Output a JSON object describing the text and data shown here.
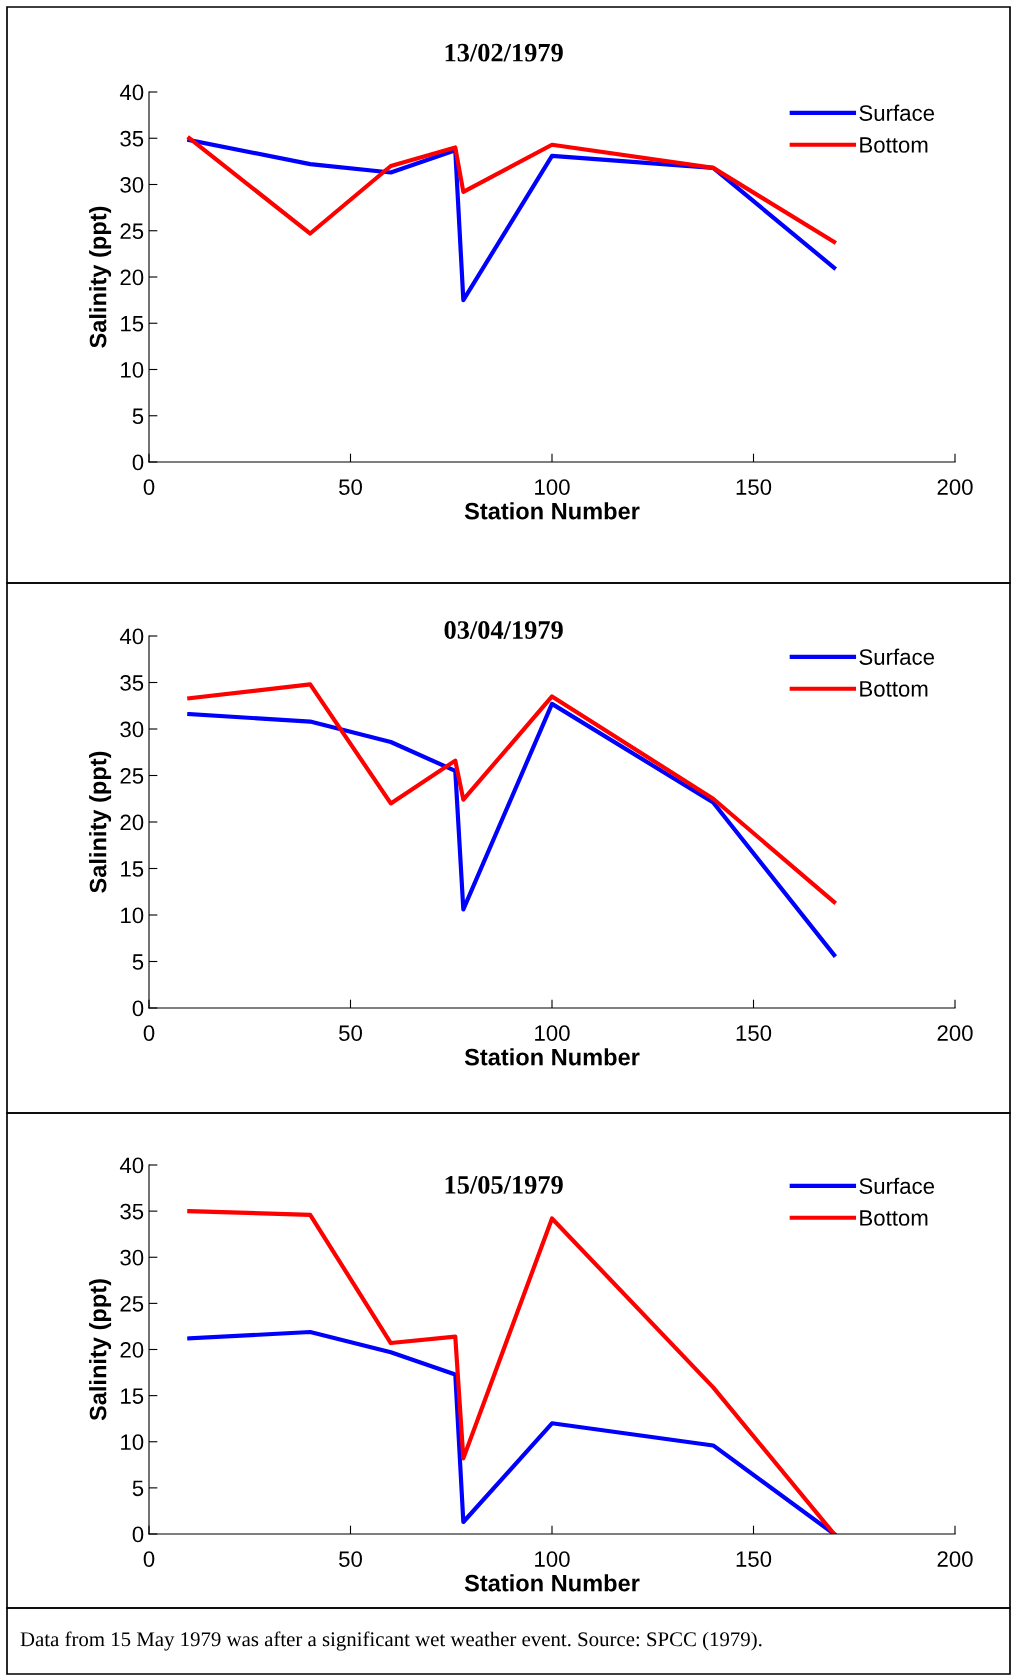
{
  "chart_data": [
    {
      "type": "line",
      "title": "13/02/1979",
      "xlabel": "Station Number",
      "ylabel": "Salinity (ppt)",
      "x": [
        10,
        40,
        60,
        76,
        78,
        100,
        140,
        170
      ],
      "xlim": [
        0,
        200
      ],
      "xticks": [
        0,
        50,
        100,
        150,
        200
      ],
      "ylim": [
        0,
        40
      ],
      "yticks": [
        0,
        5,
        10,
        15,
        20,
        25,
        30,
        35,
        40
      ],
      "legend": "top right",
      "grid": false,
      "marker": "none",
      "line_style": "solid",
      "series": [
        {
          "name": "Surface",
          "color": "#0000ff",
          "values": [
            34.8,
            32.2,
            31.3,
            33.7,
            17.5,
            33.1,
            31.8,
            21.0
          ]
        },
        {
          "name": "Bottom",
          "color": "#ff0000",
          "values": [
            35.0,
            24.7,
            32.0,
            34.0,
            29.2,
            34.3,
            31.8,
            23.8
          ]
        }
      ]
    },
    {
      "type": "line",
      "title": "03/04/1979",
      "xlabel": "Station Number",
      "ylabel": "Salinity (ppt)",
      "x": [
        10,
        40,
        60,
        76,
        78,
        100,
        140,
        170
      ],
      "xlim": [
        0,
        200
      ],
      "xticks": [
        0,
        50,
        100,
        150,
        200
      ],
      "ylim": [
        0,
        40
      ],
      "yticks": [
        0,
        5,
        10,
        15,
        20,
        25,
        30,
        35,
        40
      ],
      "legend": "top right",
      "grid": false,
      "marker": "none",
      "line_style": "solid",
      "series": [
        {
          "name": "Surface",
          "color": "#0000ff",
          "values": [
            31.6,
            30.8,
            28.6,
            25.5,
            10.6,
            32.7,
            22.1,
            5.7
          ]
        },
        {
          "name": "Bottom",
          "color": "#ff0000",
          "values": [
            33.3,
            34.8,
            22.0,
            26.6,
            22.4,
            33.5,
            22.5,
            11.4
          ]
        }
      ]
    },
    {
      "type": "line",
      "title": "15/05/1979",
      "xlabel": "Station Number",
      "ylabel": "Salinity (ppt)",
      "x": [
        10,
        40,
        60,
        76,
        78,
        100,
        140,
        170
      ],
      "xlim": [
        0,
        200
      ],
      "xticks": [
        0,
        50,
        100,
        150,
        200
      ],
      "ylim": [
        0,
        40
      ],
      "yticks": [
        0,
        5,
        10,
        15,
        20,
        25,
        30,
        35,
        40
      ],
      "legend": "top right",
      "grid": false,
      "marker": "none",
      "line_style": "solid",
      "series": [
        {
          "name": "Surface",
          "color": "#0000ff",
          "values": [
            21.2,
            21.9,
            19.7,
            17.3,
            1.3,
            12.0,
            9.6,
            0
          ]
        },
        {
          "name": "Bottom",
          "color": "#ff0000",
          "values": [
            35.0,
            34.6,
            20.7,
            21.4,
            8.2,
            34.2,
            15.9,
            0
          ]
        }
      ],
      "annotations": [
        "Data from 15 May 1979 was after a significant wet weather event. Source: SPCC (1979)."
      ]
    }
  ]
}
